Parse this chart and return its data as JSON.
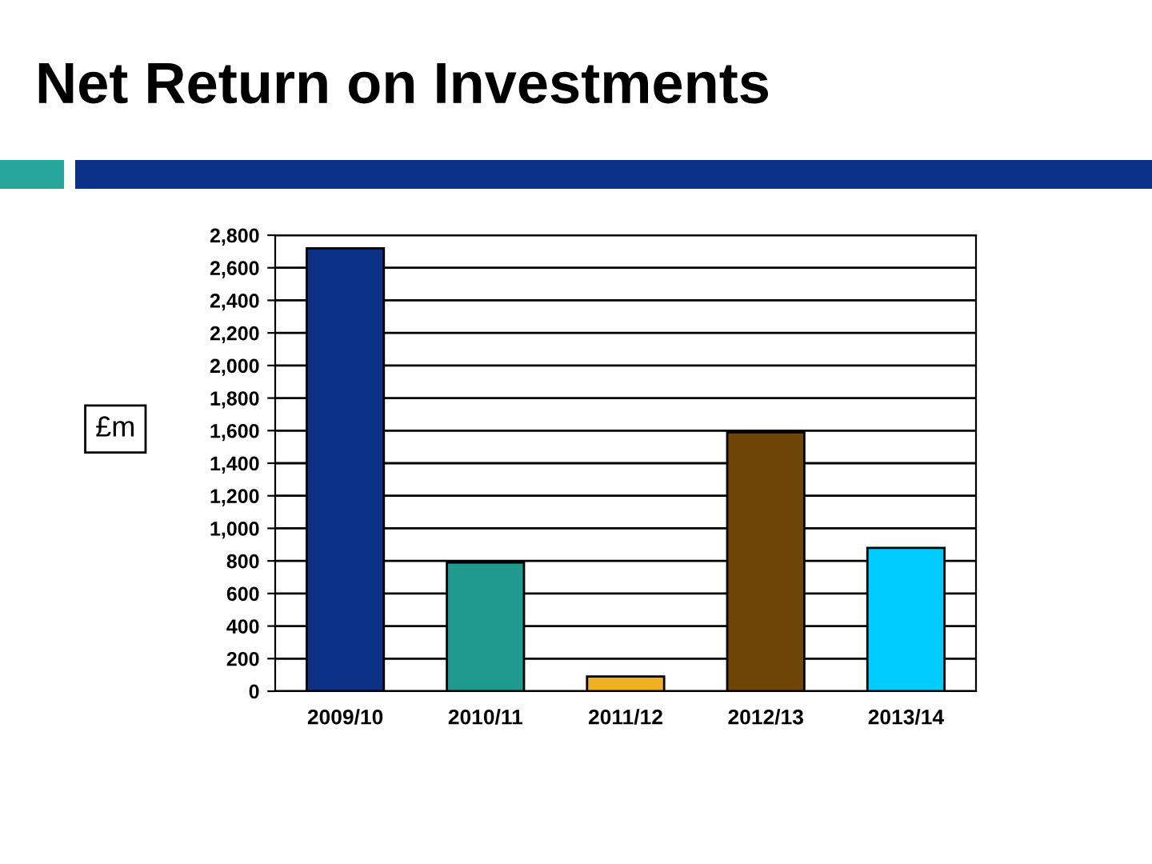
{
  "chart_data": {
    "type": "bar",
    "title": "Net Return on Investments",
    "ylabel": "£m",
    "categories": [
      "2009/10",
      "2010/11",
      "2011/12",
      "2012/13",
      "2013/14"
    ],
    "values": [
      2720,
      790,
      90,
      1590,
      880
    ],
    "colors": [
      "#0c3288",
      "#1e9a8e",
      "#f0b020",
      "#704508",
      "#00ccff"
    ],
    "ylim": [
      0,
      2800
    ],
    "yticks": [
      0,
      200,
      400,
      600,
      800,
      {
        "value": 1000,
        "label": "1,000"
      },
      {
        "value": 1200,
        "label": "1,200"
      },
      {
        "value": 1400,
        "label": "1,400"
      },
      {
        "value": 1600,
        "label": "1,600"
      },
      {
        "value": 1800,
        "label": "1,800"
      },
      {
        "value": 2000,
        "label": "2,000"
      },
      {
        "value": 2200,
        "label": "2,200"
      },
      {
        "value": 2400,
        "label": "2,400"
      },
      {
        "value": 2600,
        "label": "2,600"
      },
      {
        "value": 2800,
        "label": "2,800"
      }
    ],
    "grid": "y"
  }
}
